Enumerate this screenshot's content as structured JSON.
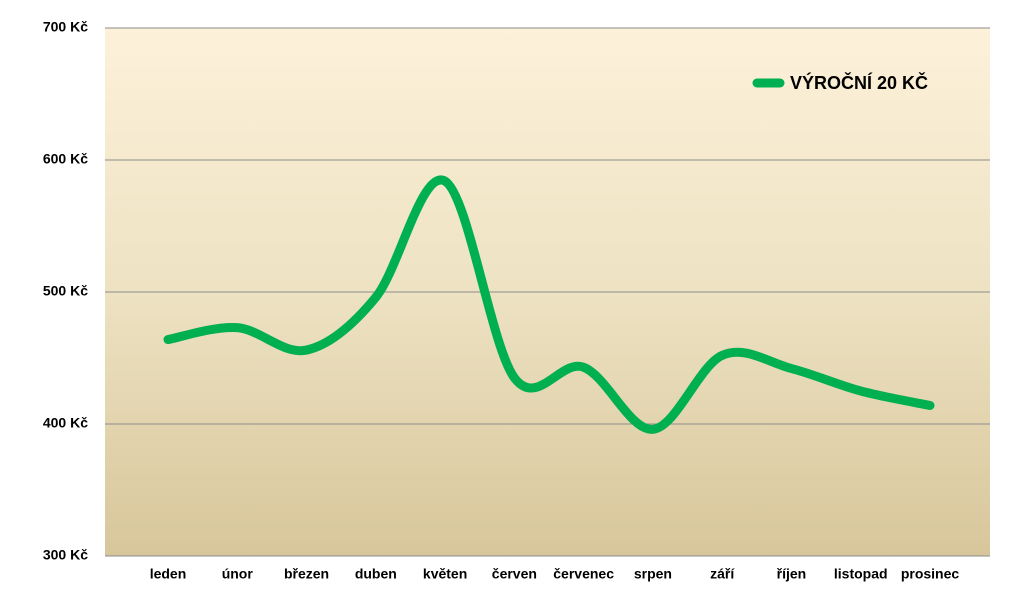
{
  "chart_data": {
    "type": "line",
    "categories": [
      "leden",
      "únor",
      "březen",
      "duben",
      "květen",
      "červen",
      "červenec",
      "srpen",
      "září",
      "říjen",
      "listopad",
      "prosinec"
    ],
    "series": [
      {
        "name": "VÝROČNÍ 20 KČ",
        "color": "#00b050",
        "values": [
          464,
          473,
          456,
          496,
          584,
          435,
          443,
          396,
          452,
          442,
          425,
          414
        ]
      }
    ],
    "ylim": [
      300,
      700
    ],
    "yticks": [
      {
        "value": 300,
        "label": "300 Kč"
      },
      {
        "value": 400,
        "label": "400 Kč"
      },
      {
        "value": 500,
        "label": "500 Kč"
      },
      {
        "value": 600,
        "label": "600 Kč"
      },
      {
        "value": 700,
        "label": "700 Kč"
      }
    ],
    "grid": true,
    "legend": "top-right"
  }
}
